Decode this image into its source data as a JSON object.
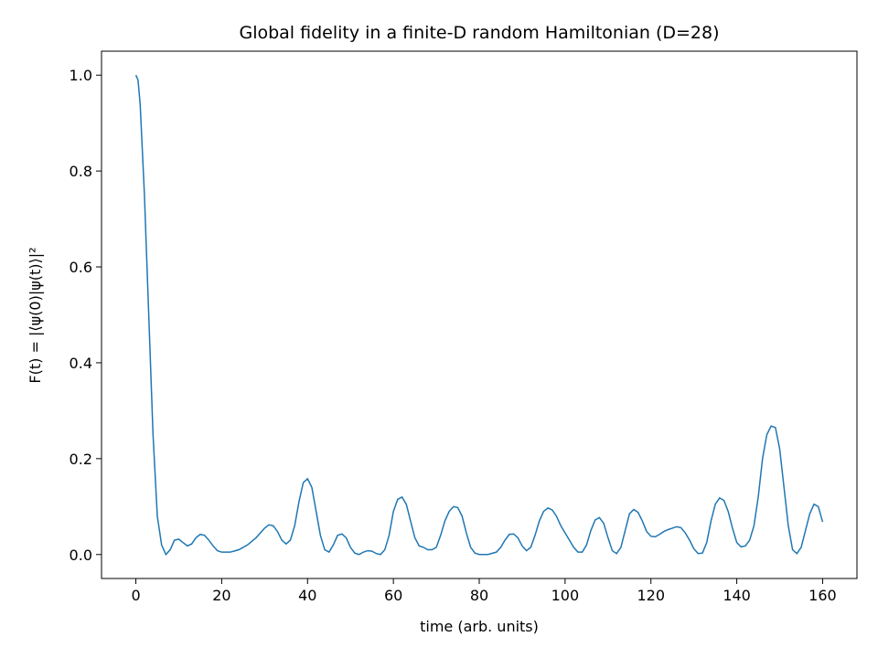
{
  "chart_data": {
    "type": "line",
    "title": "Global fidelity in a finite-D random Hamiltonian (D=28)",
    "xlabel": "time (arb. units)",
    "ylabel": "F(t) = |⟨ψ(0)|ψ(t)⟩|²",
    "xlim": [
      -8,
      168
    ],
    "ylim": [
      -0.05,
      1.05
    ],
    "xticks": [
      0,
      20,
      40,
      60,
      80,
      100,
      120,
      140,
      160
    ],
    "yticks": [
      {
        "value": 0,
        "label": "0.0"
      },
      0.2,
      0.4,
      0.6,
      0.8,
      {
        "value": 1,
        "label": "1.0"
      }
    ],
    "grid": false,
    "x": [
      0,
      0.5,
      1,
      2,
      3,
      4,
      5,
      6,
      7,
      8,
      9,
      10,
      11,
      12,
      13,
      14,
      15,
      16,
      17,
      18,
      19,
      20,
      22,
      24,
      26,
      28,
      30,
      31,
      32,
      33,
      34,
      35,
      36,
      37,
      38,
      39,
      40,
      41,
      42,
      43,
      44,
      45,
      46,
      47,
      48,
      49,
      50,
      51,
      52,
      53,
      54,
      55,
      56,
      57,
      58,
      59,
      60,
      61,
      62,
      63,
      64,
      65,
      66,
      67,
      68,
      69,
      70,
      71,
      72,
      73,
      74,
      75,
      76,
      77,
      78,
      79,
      80,
      82,
      84,
      85,
      86,
      87,
      88,
      89,
      90,
      91,
      92,
      93,
      94,
      95,
      96,
      97,
      98,
      99,
      100,
      101,
      102,
      103,
      104,
      105,
      106,
      107,
      108,
      109,
      110,
      111,
      112,
      113,
      114,
      115,
      116,
      117,
      118,
      119,
      120,
      121,
      122,
      123,
      124,
      125,
      126,
      127,
      128,
      129,
      130,
      131,
      132,
      133,
      134,
      135,
      136,
      137,
      138,
      139,
      140,
      141,
      142,
      143,
      144,
      145,
      146,
      147,
      148,
      149,
      150,
      151,
      152,
      153,
      154,
      155,
      156,
      157,
      158,
      159,
      160
    ],
    "series": [
      {
        "name": "F(t)",
        "color": "#1f77b4",
        "values": [
          1.0,
          0.99,
          0.94,
          0.75,
          0.5,
          0.25,
          0.08,
          0.02,
          0.0,
          0.01,
          0.03,
          0.032,
          0.025,
          0.018,
          0.022,
          0.035,
          0.042,
          0.04,
          0.03,
          0.018,
          0.008,
          0.005,
          0.005,
          0.01,
          0.02,
          0.035,
          0.055,
          0.062,
          0.06,
          0.048,
          0.03,
          0.022,
          0.03,
          0.06,
          0.11,
          0.15,
          0.158,
          0.14,
          0.09,
          0.04,
          0.01,
          0.005,
          0.02,
          0.04,
          0.043,
          0.035,
          0.015,
          0.003,
          0.0,
          0.005,
          0.008,
          0.007,
          0.002,
          0.0,
          0.01,
          0.04,
          0.09,
          0.115,
          0.12,
          0.105,
          0.07,
          0.035,
          0.018,
          0.015,
          0.01,
          0.01,
          0.015,
          0.04,
          0.07,
          0.09,
          0.1,
          0.098,
          0.08,
          0.045,
          0.015,
          0.003,
          0.0,
          0.0,
          0.005,
          0.015,
          0.03,
          0.042,
          0.043,
          0.035,
          0.018,
          0.008,
          0.015,
          0.04,
          0.07,
          0.09,
          0.097,
          0.093,
          0.08,
          0.06,
          0.045,
          0.03,
          0.015,
          0.005,
          0.005,
          0.02,
          0.05,
          0.072,
          0.077,
          0.065,
          0.035,
          0.008,
          0.002,
          0.015,
          0.05,
          0.085,
          0.094,
          0.088,
          0.07,
          0.048,
          0.038,
          0.037,
          0.042,
          0.048,
          0.052,
          0.055,
          0.058,
          0.056,
          0.045,
          0.03,
          0.012,
          0.002,
          0.003,
          0.025,
          0.07,
          0.105,
          0.118,
          0.113,
          0.09,
          0.055,
          0.025,
          0.016,
          0.018,
          0.03,
          0.06,
          0.12,
          0.2,
          0.25,
          0.268,
          0.265,
          0.22,
          0.14,
          0.06,
          0.01,
          0.002,
          0.015,
          0.05,
          0.085,
          0.105,
          0.1,
          0.068
        ]
      }
    ]
  }
}
